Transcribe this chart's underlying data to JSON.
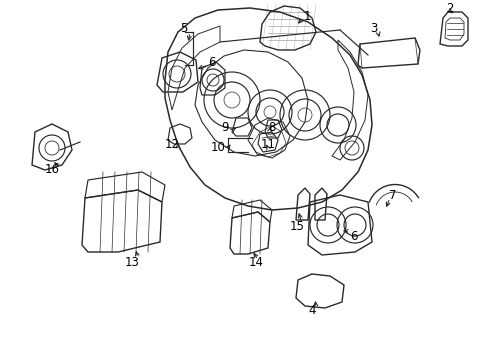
{
  "background_color": "#ffffff",
  "fig_width": 4.89,
  "fig_height": 3.6,
  "dpi": 100,
  "text_color": "#000000",
  "label_fontsize": 8.5,
  "edge_color": "#2a2a2a",
  "line_width": 0.85
}
